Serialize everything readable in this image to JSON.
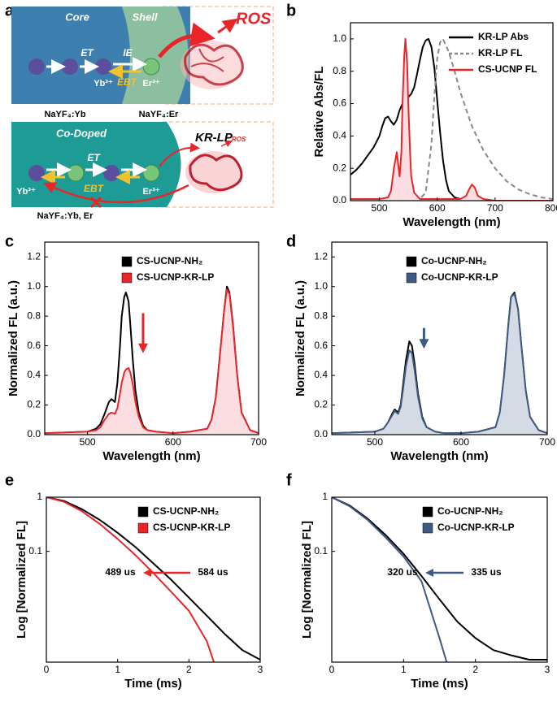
{
  "panel_labels": [
    "a",
    "b",
    "c",
    "d",
    "e",
    "f"
  ],
  "diagram": {
    "top": {
      "core": "Core",
      "shell": "Shell",
      "et": "ET",
      "ie": "IE",
      "ebt": "EBT",
      "yb": "Yb³⁺",
      "er": "Er³⁺",
      "core_material": "NaYF₄:Yb",
      "shell_material": "NaYF₄:Er",
      "ros": "ROS"
    },
    "bottom": {
      "title": "Co-Doped",
      "et": "ET",
      "ebt": "EBT",
      "yb": "Yb³⁺",
      "er": "Er³⁺",
      "protein": "KR-LP",
      "ros": "ROS",
      "material": "NaYF₄:Yb, Er"
    }
  },
  "chart_data": [
    {
      "type": "line",
      "xlabel": "Wavelength (nm)",
      "ylabel": "Relative Abs/FL",
      "xlim": [
        450,
        800
      ],
      "xticks": [
        500,
        600,
        700,
        800
      ],
      "ylim": [
        0,
        1.1
      ],
      "yticks": [
        {
          "value": 0,
          "label": "0.0"
        },
        0.2,
        0.4,
        0.6,
        0.8,
        {
          "value": 1,
          "label": "1.0"
        }
      ],
      "legend": "upper right",
      "legend_marker": "line",
      "series": [
        {
          "name": "KR-LP Abs",
          "color": "#000000",
          "x": [
            450,
            460,
            470,
            480,
            490,
            500,
            505,
            510,
            515,
            520,
            525,
            530,
            535,
            540,
            545,
            550,
            555,
            560,
            565,
            570,
            575,
            580,
            585,
            590,
            595,
            600,
            605,
            610,
            615,
            620,
            630,
            640,
            650,
            660,
            680,
            700,
            750,
            800
          ],
          "values": [
            0.16,
            0.19,
            0.23,
            0.28,
            0.33,
            0.4,
            0.46,
            0.51,
            0.52,
            0.49,
            0.47,
            0.5,
            0.56,
            0.6,
            0.62,
            0.64,
            0.66,
            0.7,
            0.78,
            0.87,
            0.95,
            0.99,
            1.0,
            0.95,
            0.82,
            0.62,
            0.42,
            0.25,
            0.13,
            0.06,
            0.02,
            0.01,
            0.01,
            0,
            0,
            0,
            0,
            0
          ]
        },
        {
          "name": "KR-LP FL",
          "color": "#888888",
          "dash": true,
          "x": [
            560,
            570,
            580,
            590,
            595,
            600,
            605,
            610,
            620,
            630,
            640,
            660,
            680,
            700,
            720,
            740,
            760,
            780,
            800
          ],
          "values": [
            0,
            0.01,
            0.05,
            0.35,
            0.65,
            0.88,
            0.98,
            1.0,
            0.92,
            0.8,
            0.67,
            0.46,
            0.31,
            0.2,
            0.12,
            0.07,
            0.04,
            0.02,
            0.01
          ]
        },
        {
          "name": "CS-UCNP FL",
          "color": "#e8262a",
          "fill": "#fbdde2",
          "x": [
            450,
            500,
            515,
            520,
            525,
            530,
            535,
            538,
            540,
            543,
            545,
            548,
            550,
            553,
            555,
            560,
            570,
            600,
            640,
            650,
            655,
            660,
            665,
            670,
            680,
            700,
            800
          ],
          "values": [
            0.01,
            0.01,
            0.02,
            0.06,
            0.2,
            0.3,
            0.15,
            0.3,
            0.6,
            0.9,
            1.0,
            0.85,
            0.6,
            0.3,
            0.15,
            0.05,
            0.01,
            0.01,
            0.01,
            0.03,
            0.07,
            0.1,
            0.08,
            0.03,
            0.01,
            0,
            0
          ]
        }
      ]
    },
    {
      "type": "line",
      "xlabel": "Wavelength (nm)",
      "ylabel": "Normalized FL (a.u.)",
      "xlim": [
        450,
        700
      ],
      "xticks": [
        500,
        600,
        700
      ],
      "ylim": [
        0,
        1.3
      ],
      "yticks": [
        {
          "value": 0,
          "label": "0.0"
        },
        0.2,
        0.4,
        0.6,
        0.8,
        {
          "value": 1,
          "label": "1.0"
        },
        1.2
      ],
      "legend": "upper center",
      "legend_marker": "square",
      "series": [
        {
          "name": "CS-UCNP-NH₂",
          "color": "#000000",
          "x": [
            450,
            500,
            510,
            515,
            520,
            525,
            528,
            532,
            535,
            538,
            540,
            543,
            545,
            548,
            550,
            553,
            556,
            560,
            565,
            570,
            580,
            600,
            620,
            640,
            645,
            650,
            655,
            660,
            663,
            666,
            670,
            675,
            680,
            690,
            700
          ],
          "values": [
            0.01,
            0.02,
            0.04,
            0.07,
            0.14,
            0.22,
            0.24,
            0.22,
            0.35,
            0.6,
            0.8,
            0.93,
            0.96,
            0.9,
            0.75,
            0.5,
            0.3,
            0.15,
            0.06,
            0.03,
            0.02,
            0.01,
            0.02,
            0.04,
            0.1,
            0.25,
            0.55,
            0.85,
            1.0,
            0.96,
            0.75,
            0.4,
            0.15,
            0.03,
            0.01
          ]
        },
        {
          "name": "CS-UCNP-KR-LP",
          "color": "#e8262a",
          "fill": "#fbdde2",
          "x": [
            450,
            500,
            510,
            515,
            520,
            525,
            528,
            532,
            535,
            538,
            540,
            543,
            545,
            548,
            550,
            553,
            556,
            560,
            565,
            570,
            580,
            600,
            620,
            640,
            645,
            650,
            655,
            660,
            663,
            666,
            670,
            675,
            680,
            690,
            700
          ],
          "values": [
            0.01,
            0.02,
            0.03,
            0.05,
            0.1,
            0.14,
            0.15,
            0.14,
            0.18,
            0.28,
            0.35,
            0.42,
            0.44,
            0.45,
            0.42,
            0.34,
            0.22,
            0.12,
            0.05,
            0.03,
            0.02,
            0.01,
            0.02,
            0.04,
            0.1,
            0.25,
            0.55,
            0.85,
            0.98,
            0.95,
            0.74,
            0.4,
            0.15,
            0.03,
            0.01
          ]
        }
      ]
    },
    {
      "type": "line",
      "xlabel": "Wavelength (nm)",
      "ylabel": "Normalized FL (a.u.)",
      "xlim": [
        450,
        700
      ],
      "xticks": [
        500,
        600,
        700
      ],
      "ylim": [
        0,
        1.3
      ],
      "yticks": [
        {
          "value": 0,
          "label": "0.0"
        },
        0.2,
        0.4,
        0.6,
        0.8,
        {
          "value": 1,
          "label": "1.0"
        },
        1.2
      ],
      "legend": "upper center",
      "legend_marker": "square",
      "series": [
        {
          "name": "Co-UCNP-NH₂",
          "color": "#000000",
          "x": [
            450,
            500,
            510,
            515,
            520,
            523,
            527,
            530,
            533,
            536,
            540,
            543,
            546,
            550,
            555,
            560,
            570,
            580,
            600,
            620,
            640,
            645,
            650,
            655,
            658,
            662,
            666,
            670,
            675,
            680,
            690,
            700
          ],
          "values": [
            0.01,
            0.02,
            0.04,
            0.08,
            0.14,
            0.17,
            0.15,
            0.2,
            0.35,
            0.5,
            0.63,
            0.6,
            0.48,
            0.28,
            0.12,
            0.05,
            0.02,
            0.01,
            0.01,
            0.02,
            0.05,
            0.15,
            0.4,
            0.75,
            0.93,
            0.96,
            0.85,
            0.6,
            0.3,
            0.12,
            0.03,
            0.01
          ]
        },
        {
          "name": "Co-UCNP-KR-LP",
          "color": "#3f5a80",
          "fill": "#d5dbe4",
          "x": [
            450,
            500,
            510,
            515,
            520,
            523,
            527,
            530,
            533,
            536,
            540,
            543,
            546,
            550,
            555,
            560,
            570,
            580,
            600,
            620,
            640,
            645,
            650,
            655,
            658,
            662,
            666,
            670,
            675,
            680,
            690,
            700
          ],
          "values": [
            0.01,
            0.02,
            0.04,
            0.08,
            0.13,
            0.16,
            0.14,
            0.19,
            0.32,
            0.46,
            0.57,
            0.55,
            0.44,
            0.26,
            0.11,
            0.05,
            0.02,
            0.01,
            0.01,
            0.02,
            0.05,
            0.15,
            0.4,
            0.75,
            0.93,
            0.95,
            0.85,
            0.6,
            0.3,
            0.12,
            0.03,
            0.01
          ]
        }
      ]
    },
    {
      "type": "line",
      "xlabel": "Time (ms)",
      "ylabel": "Log [Normalized FL]",
      "xlim": [
        0,
        3
      ],
      "xticks": [
        0,
        1,
        2,
        3
      ],
      "ylim": [
        0.0009,
        1
      ],
      "yticks": [
        1,
        0.1
      ],
      "log_y": true,
      "legend": "upper right",
      "legend_marker": "square",
      "annotations": [
        "489 us",
        "584 us"
      ],
      "series": [
        {
          "name": "CS-UCNP-NH₂",
          "color": "#000000",
          "x": [
            0,
            0.25,
            0.5,
            0.75,
            1,
            1.25,
            1.5,
            1.75,
            2,
            2.25,
            2.5,
            2.75,
            3
          ],
          "values": [
            1,
            0.85,
            0.6,
            0.38,
            0.22,
            0.12,
            0.06,
            0.03,
            0.014,
            0.0065,
            0.003,
            0.0015,
            0.001
          ]
        },
        {
          "name": "CS-UCNP-KR-LP",
          "color": "#e8262a",
          "x": [
            0,
            0.25,
            0.5,
            0.75,
            1,
            1.25,
            1.5,
            1.75,
            2,
            2.25,
            2.35
          ],
          "values": [
            1,
            0.82,
            0.55,
            0.32,
            0.17,
            0.085,
            0.04,
            0.018,
            0.008,
            0.0022,
            0.0009
          ]
        }
      ]
    },
    {
      "type": "line",
      "xlabel": "Time (ms)",
      "ylabel": "Log [Normalized FL]",
      "xlim": [
        0,
        3
      ],
      "xticks": [
        0,
        1,
        2,
        3
      ],
      "ylim": [
        0.0009,
        1
      ],
      "yticks": [
        1,
        0.1
      ],
      "log_y": true,
      "legend": "upper right",
      "legend_marker": "square",
      "annotations": [
        "320 us",
        "335 us"
      ],
      "series": [
        {
          "name": "Co-UCNP-NH₂",
          "color": "#000000",
          "x": [
            0,
            0.25,
            0.5,
            0.75,
            1,
            1.25,
            1.5,
            1.75,
            2,
            2.25,
            2.5,
            2.75,
            3
          ],
          "values": [
            1,
            0.7,
            0.4,
            0.2,
            0.09,
            0.035,
            0.013,
            0.005,
            0.0025,
            0.0015,
            0.0012,
            0.001,
            0.001
          ]
        },
        {
          "name": "Co-UCNP-KR-LP",
          "color": "#3f5a80",
          "x": [
            0,
            0.25,
            0.5,
            0.75,
            1,
            1.25,
            1.5,
            1.6
          ],
          "values": [
            1,
            0.68,
            0.38,
            0.18,
            0.08,
            0.028,
            0.0025,
            0.0009
          ]
        }
      ]
    }
  ]
}
